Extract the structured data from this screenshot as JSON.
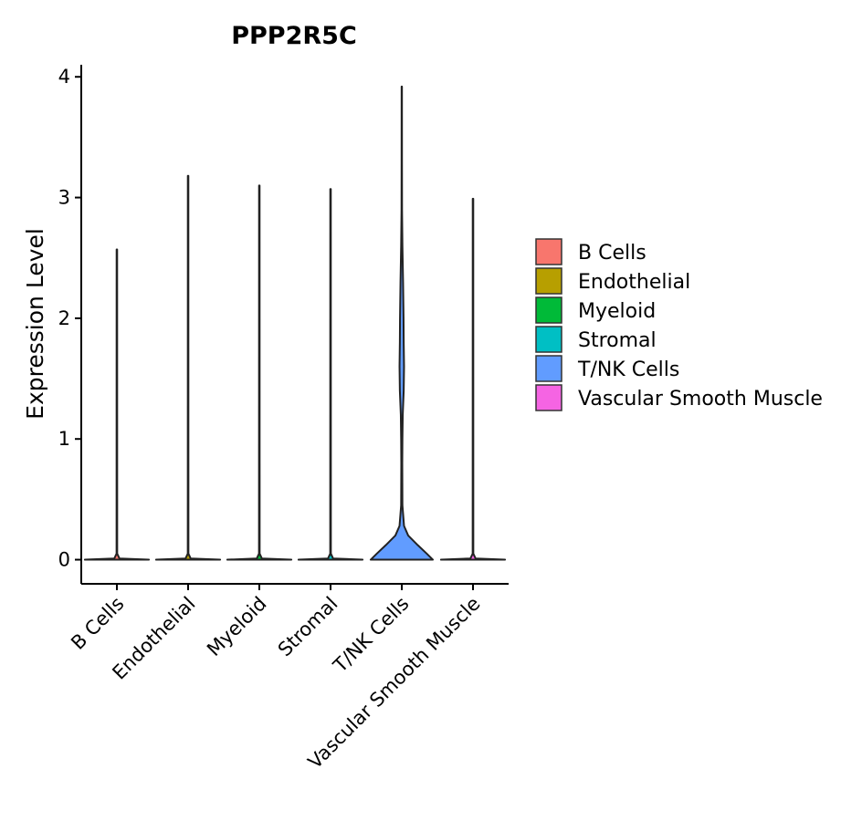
{
  "chart_data": {
    "type": "violin",
    "title": "PPP2R5C",
    "xlabel": "",
    "ylabel": "Expression Level",
    "ylim": [
      -0.2,
      4.1
    ],
    "yticks": [
      "0",
      "1",
      "2",
      "3",
      "4"
    ],
    "categories": [
      "B Cells",
      "Endothelial",
      "Myeloid",
      "Stromal",
      "T/NK Cells",
      "Vascular Smooth Muscle"
    ],
    "colors": [
      "#F8766D",
      "#B79F00",
      "#00BA38",
      "#00BFC4",
      "#619CFF",
      "#F564E3"
    ],
    "series": [
      {
        "name": "B Cells",
        "max": 2.57,
        "profile": [
          [
            0,
            1
          ],
          [
            0.01,
            0.08
          ],
          [
            0.05,
            0.01
          ],
          [
            2.57,
            0.008
          ]
        ]
      },
      {
        "name": "Endothelial",
        "max": 3.18,
        "profile": [
          [
            0,
            1
          ],
          [
            0.01,
            0.08
          ],
          [
            0.05,
            0.01
          ],
          [
            3.18,
            0.008
          ]
        ]
      },
      {
        "name": "Myeloid",
        "max": 3.1,
        "profile": [
          [
            0,
            1
          ],
          [
            0.01,
            0.08
          ],
          [
            0.05,
            0.01
          ],
          [
            3.1,
            0.008
          ]
        ]
      },
      {
        "name": "Stromal",
        "max": 3.07,
        "profile": [
          [
            0,
            1
          ],
          [
            0.01,
            0.08
          ],
          [
            0.05,
            0.01
          ],
          [
            3.07,
            0.008
          ]
        ]
      },
      {
        "name": "T/NK Cells",
        "max": 3.92,
        "profile": [
          [
            0,
            0.97
          ],
          [
            0.05,
            0.78
          ],
          [
            0.12,
            0.5
          ],
          [
            0.2,
            0.2
          ],
          [
            0.28,
            0.07
          ],
          [
            0.45,
            0.02
          ],
          [
            0.8,
            0.015
          ],
          [
            1.0,
            0.02
          ],
          [
            1.2,
            0.03
          ],
          [
            1.4,
            0.06
          ],
          [
            1.6,
            0.07
          ],
          [
            1.8,
            0.06
          ],
          [
            2.0,
            0.055
          ],
          [
            2.3,
            0.04
          ],
          [
            2.6,
            0.02
          ],
          [
            2.9,
            0.008
          ],
          [
            3.3,
            0.006
          ],
          [
            3.92,
            0.005
          ]
        ]
      },
      {
        "name": "Vascular Smooth Muscle",
        "max": 2.99,
        "profile": [
          [
            0,
            1
          ],
          [
            0.01,
            0.08
          ],
          [
            0.05,
            0.01
          ],
          [
            2.99,
            0.008
          ]
        ]
      }
    ],
    "legend": {
      "position": "right",
      "entries": [
        "B Cells",
        "Endothelial",
        "Myeloid",
        "Stromal",
        "T/NK Cells",
        "Vascular Smooth Muscle"
      ]
    }
  }
}
